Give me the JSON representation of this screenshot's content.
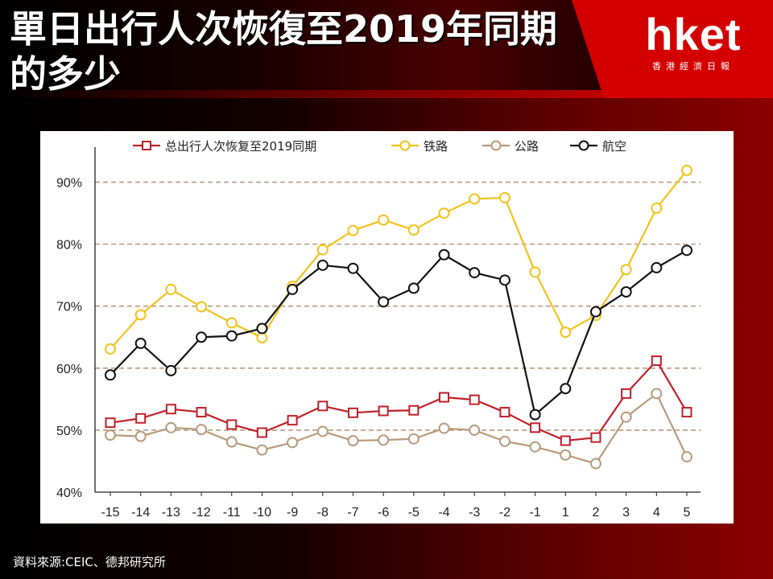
{
  "title": "單日出行人次恢復至2019年同期的多少",
  "logo": {
    "word": "hket",
    "subtitle": "香港經濟日報"
  },
  "source": "資料來源:CEIC、德邦研究所",
  "colors": {
    "total": "#c0202a",
    "rail": "#f2c21b",
    "road": "#b89a7c",
    "air": "#111111",
    "grid": "#b89a7c"
  },
  "chart_data": {
    "type": "line",
    "categories": [
      "-15",
      "-14",
      "-13",
      "-12",
      "-11",
      "-10",
      "-9",
      "-8",
      "-7",
      "-6",
      "-5",
      "-4",
      "-3",
      "-2",
      "-1",
      "1",
      "2",
      "3",
      "4",
      "5"
    ],
    "ylim": [
      40,
      95
    ],
    "yticks": [
      40,
      50,
      60,
      70,
      80,
      90
    ],
    "ytick_labels": [
      "40%",
      "50%",
      "60%",
      "70%",
      "80%",
      "90%"
    ],
    "grid": "horizontal dashed",
    "legend_position": "top",
    "series": [
      {
        "name": "总出行人次恢复至2019同期",
        "marker": "square",
        "color_key": "total",
        "values": [
          51.2,
          51.9,
          53.4,
          52.9,
          50.9,
          49.6,
          51.6,
          53.9,
          52.8,
          53.1,
          53.2,
          55.3,
          54.9,
          52.9,
          50.4,
          48.3,
          48.8,
          55.9,
          61.2,
          52.9
        ]
      },
      {
        "name": "铁路",
        "marker": "circle",
        "color_key": "rail",
        "values": [
          63.1,
          68.6,
          72.7,
          69.9,
          67.3,
          64.9,
          73.2,
          79.1,
          82.2,
          83.9,
          82.3,
          85.0,
          87.3,
          87.5,
          75.5,
          65.8,
          68.5,
          75.9,
          85.8,
          91.9
        ]
      },
      {
        "name": "公路",
        "marker": "circle",
        "color_key": "road",
        "values": [
          49.2,
          49.0,
          50.4,
          50.1,
          48.1,
          46.8,
          48.0,
          49.8,
          48.3,
          48.4,
          48.6,
          50.3,
          50.0,
          48.2,
          47.3,
          46.0,
          44.6,
          52.1,
          55.9,
          45.7
        ]
      },
      {
        "name": "航空",
        "marker": "circle",
        "color_key": "air",
        "values": [
          58.9,
          64.0,
          59.6,
          65.0,
          65.2,
          66.4,
          72.7,
          76.6,
          76.1,
          70.7,
          72.9,
          78.3,
          75.4,
          74.2,
          52.5,
          56.7,
          69.1,
          72.3,
          76.2,
          79.0
        ]
      }
    ]
  }
}
